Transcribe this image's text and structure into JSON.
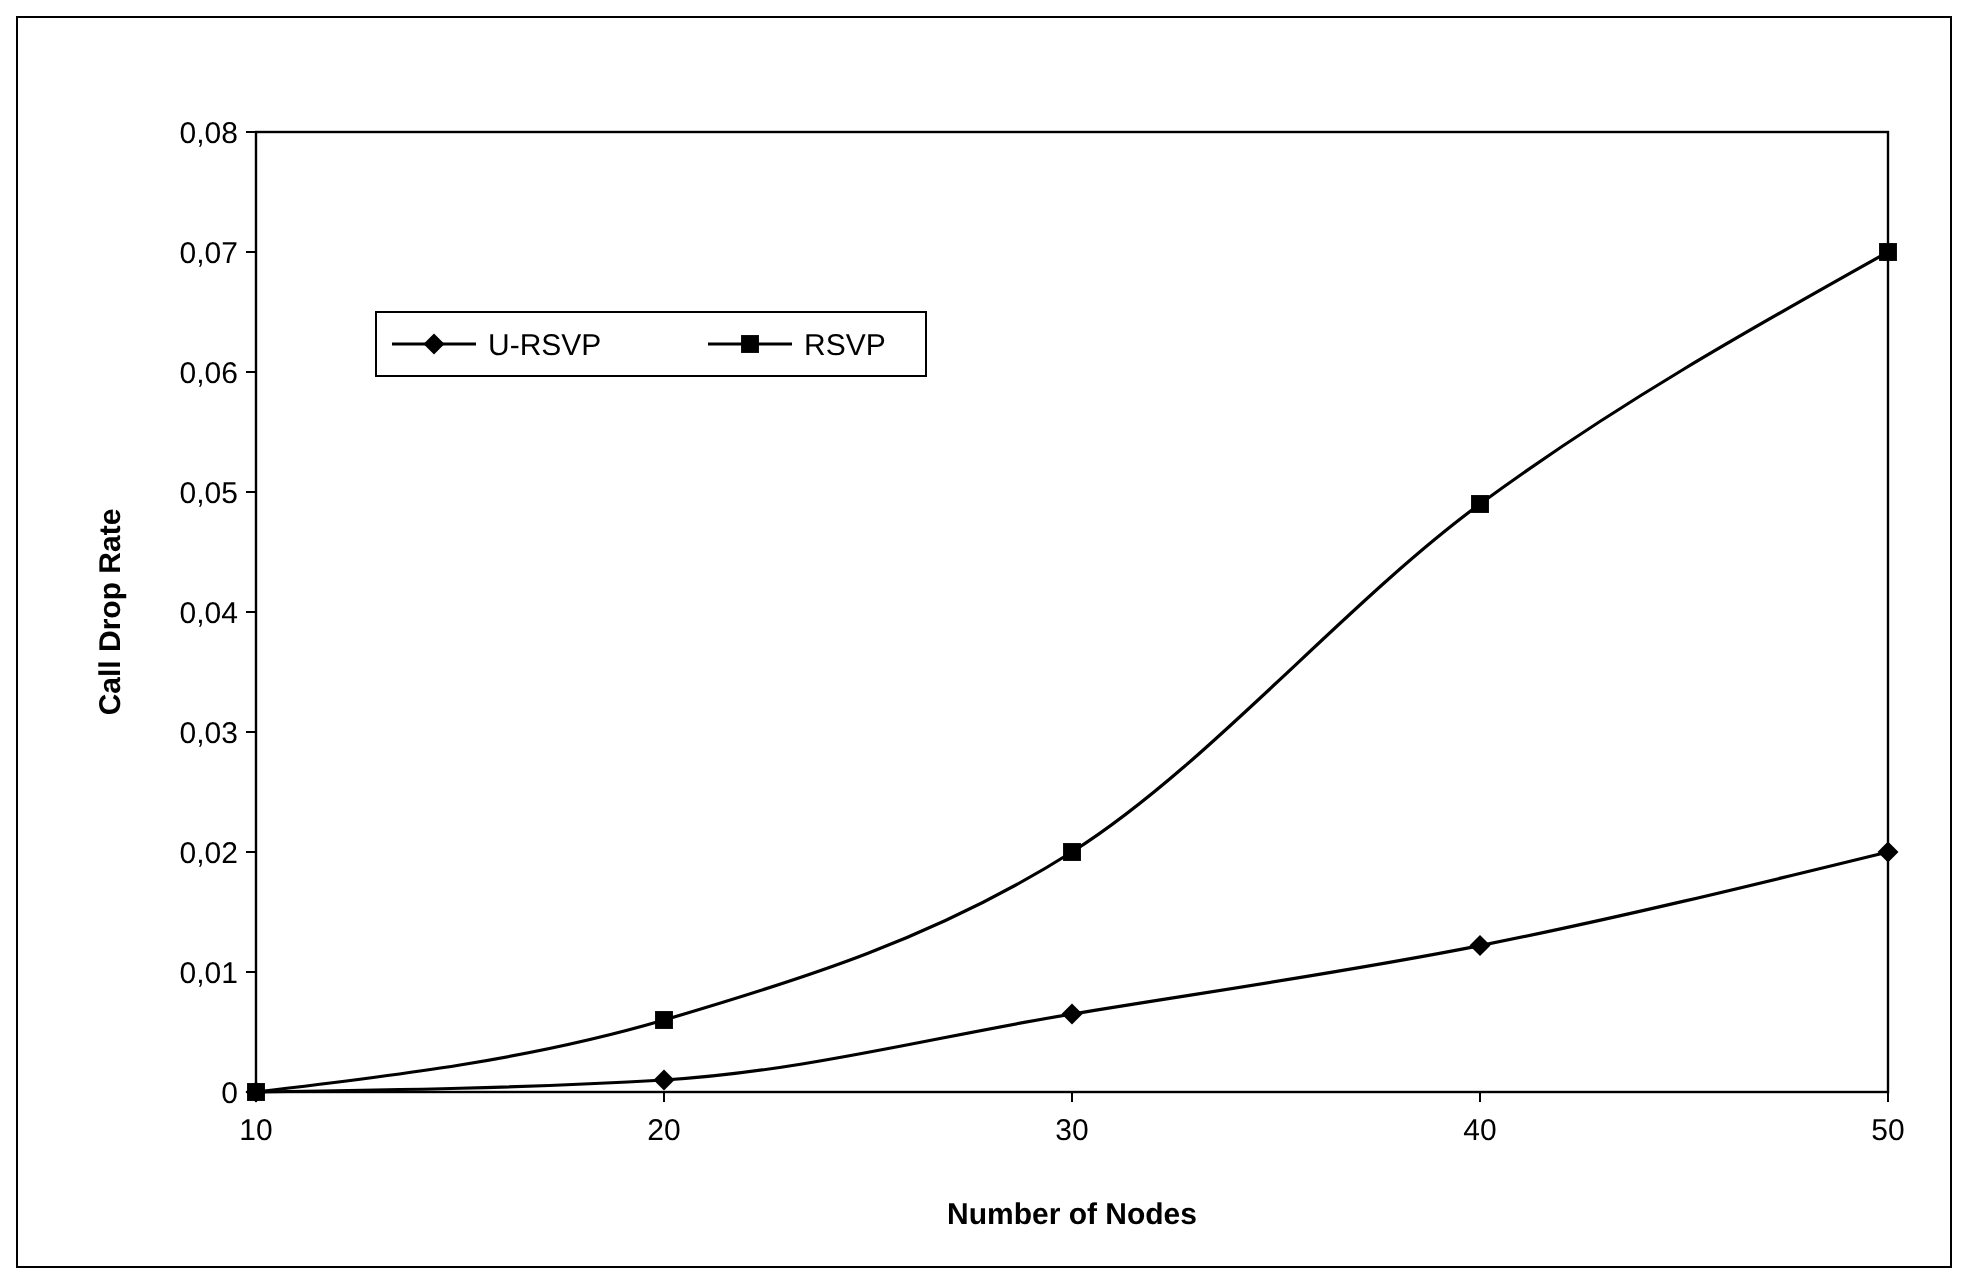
{
  "chart_data": {
    "type": "line",
    "xlabel": "Number of Nodes",
    "ylabel": "Call Drop Rate",
    "x": [
      10,
      20,
      30,
      40,
      50
    ],
    "series": [
      {
        "name": "U-RSVP",
        "color": "#000000",
        "marker": "diamond",
        "values": [
          0,
          0.001,
          0.0065,
          0.0122,
          0.02
        ]
      },
      {
        "name": "RSVP",
        "color": "#000000",
        "marker": "square",
        "values": [
          0,
          0.006,
          0.02,
          0.049,
          0.07
        ]
      }
    ],
    "xlim": [
      10,
      50
    ],
    "xticks": [
      10,
      20,
      30,
      40,
      50
    ],
    "ylim": [
      0,
      0.08
    ],
    "yticks": [
      {
        "value": 0,
        "label": "0"
      },
      {
        "value": 0.01,
        "label": "0,01"
      },
      {
        "value": 0.02,
        "label": "0,02"
      },
      {
        "value": 0.03,
        "label": "0,03"
      },
      {
        "value": 0.04,
        "label": "0,04"
      },
      {
        "value": 0.05,
        "label": "0,05"
      },
      {
        "value": 0.06,
        "label": "0,06"
      },
      {
        "value": 0.07,
        "label": "0,07"
      },
      {
        "value": 0.08,
        "label": "0,08"
      }
    ],
    "grid": false,
    "legend": "top left",
    "line_style": "solid"
  }
}
